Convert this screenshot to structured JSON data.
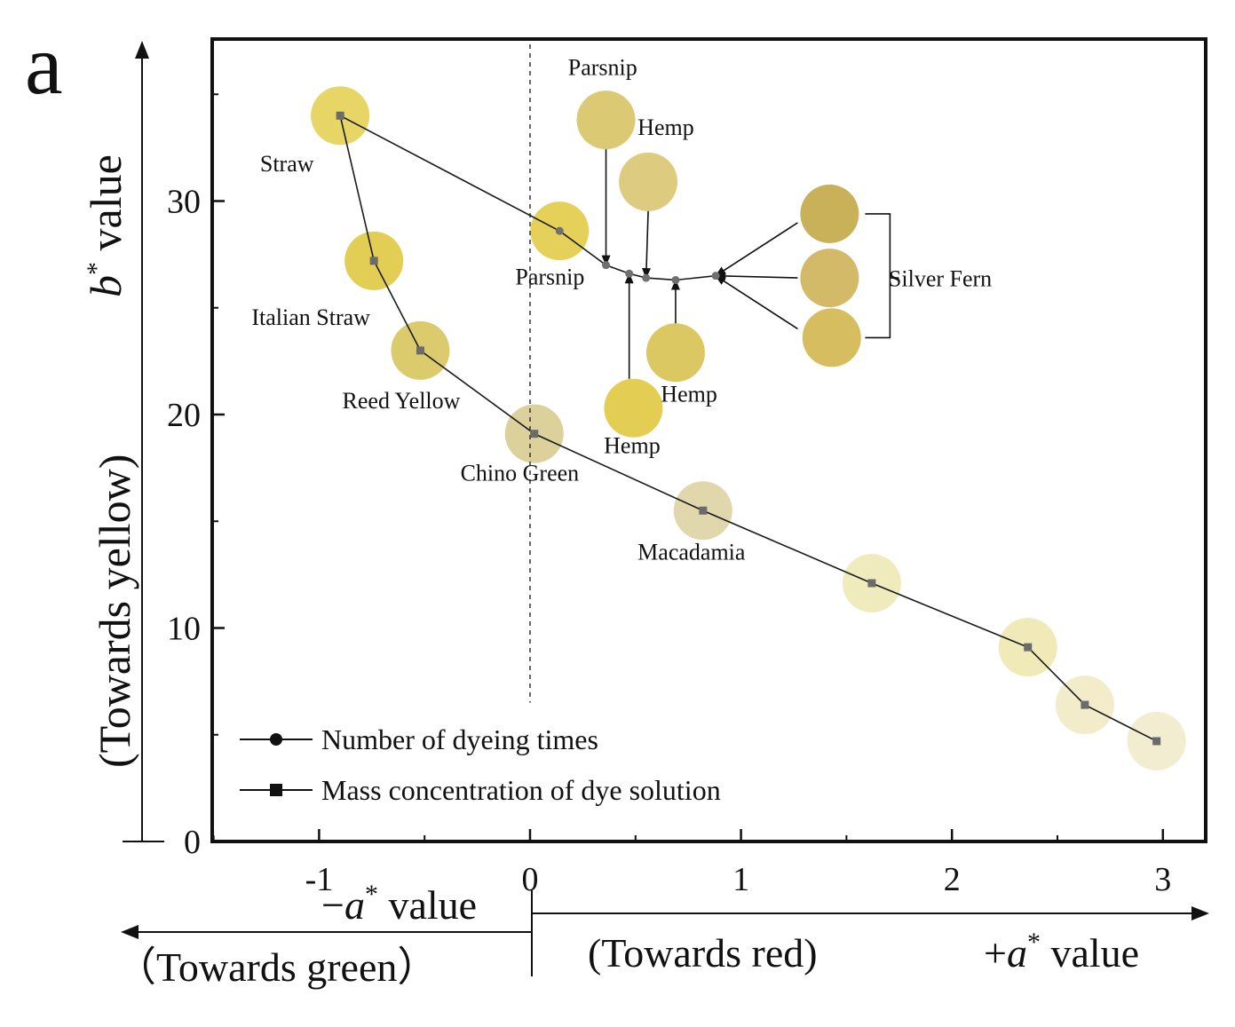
{
  "chart_data": {
    "type": "scatter",
    "panel_label": "a",
    "title": "",
    "xlabel": "a* value",
    "ylabel": "b* value (Towards yellow)",
    "x_axis": {
      "ticks": [
        -1,
        0,
        1,
        2,
        3
      ],
      "tick_labels": [
        "-1",
        "0",
        "1",
        "2",
        "3"
      ],
      "range": [
        -1.5,
        3.2
      ]
    },
    "y_axis": {
      "ticks": [
        0,
        10,
        20,
        30
      ],
      "tick_labels": [
        "0",
        "10",
        "20",
        "30"
      ],
      "range": [
        0,
        37
      ]
    },
    "axis_text": {
      "ylabel_main": "value",
      "ylabel_var": "b",
      "ylabel_sup": "*",
      "ylabel_sub": "(Towards yellow)",
      "neg_a_prefix": "−",
      "neg_a_var": "a",
      "neg_a_sup": "*",
      "neg_a_value": " value",
      "pos_a_prefix": "+",
      "pos_a_var": "a",
      "pos_a_sup": "*",
      "pos_a_value": " value",
      "towards_green": "（Towards green）",
      "towards_red": "(Towards red)"
    },
    "series": [
      {
        "name": "Number of dyeing times",
        "marker": "circle",
        "points": [
          {
            "x": -0.9,
            "y": 34.0
          },
          {
            "x": 0.14,
            "y": 28.6
          },
          {
            "x": 0.36,
            "y": 27.0
          },
          {
            "x": 0.47,
            "y": 26.6
          },
          {
            "x": 0.55,
            "y": 26.4
          },
          {
            "x": 0.69,
            "y": 26.3
          },
          {
            "x": 0.88,
            "y": 26.5
          }
        ]
      },
      {
        "name": "Mass concentration of dye solution",
        "marker": "square",
        "points": [
          {
            "x": -0.9,
            "y": 34.0
          },
          {
            "x": -0.74,
            "y": 27.2
          },
          {
            "x": -0.52,
            "y": 23.0
          },
          {
            "x": 0.02,
            "y": 19.1
          },
          {
            "x": 0.82,
            "y": 15.5
          },
          {
            "x": 1.62,
            "y": 12.1
          },
          {
            "x": 2.36,
            "y": 9.1
          },
          {
            "x": 2.63,
            "y": 6.4
          },
          {
            "x": 2.97,
            "y": 4.7
          }
        ]
      }
    ],
    "swatches": [
      {
        "x": -0.9,
        "y": 34.0,
        "color": "#e7d565"
      },
      {
        "x": -0.74,
        "y": 27.2,
        "color": "#e3ce55"
      },
      {
        "x": -0.52,
        "y": 23.0,
        "color": "#dccb6d"
      },
      {
        "x": 0.02,
        "y": 19.1,
        "color": "#dcd19b"
      },
      {
        "x": 0.82,
        "y": 15.5,
        "color": "#e0d7ac"
      },
      {
        "x": 1.62,
        "y": 12.1,
        "color": "#f0ebbd"
      },
      {
        "x": 2.36,
        "y": 9.1,
        "color": "#f0e9b8"
      },
      {
        "x": 2.63,
        "y": 6.4,
        "color": "#f3eccb"
      },
      {
        "x": 2.97,
        "y": 4.7,
        "color": "#f2edd1"
      },
      {
        "x": 0.14,
        "y": 28.6,
        "color": "#e5d15a"
      },
      {
        "x": 0.36,
        "y": 33.8,
        "color": "#dcc973"
      },
      {
        "x": 0.56,
        "y": 30.9,
        "color": "#ddcc80"
      },
      {
        "x": 0.49,
        "y": 20.3,
        "color": "#e3cd52"
      },
      {
        "x": 0.69,
        "y": 22.9,
        "color": "#dcc862"
      },
      {
        "x": 1.42,
        "y": 29.4,
        "color": "#c9b15a"
      },
      {
        "x": 1.42,
        "y": 26.4,
        "color": "#d2ba68"
      },
      {
        "x": 1.43,
        "y": 23.6,
        "color": "#d6bd60"
      }
    ],
    "annotations": [
      {
        "text": "Straw",
        "x": -1.28,
        "y": 31.4
      },
      {
        "text": "Italian Straw",
        "x": -1.32,
        "y": 24.2
      },
      {
        "text": "Reed Yellow",
        "x": -0.89,
        "y": 20.3
      },
      {
        "text": "Chino Green",
        "x": -0.33,
        "y": 16.9
      },
      {
        "text": "Macadamia",
        "x": 0.51,
        "y": 13.2
      },
      {
        "text": "Parsnip",
        "x": -0.07,
        "y": 26.1
      },
      {
        "text": "Parsnip",
        "x": 0.18,
        "y": 35.9
      },
      {
        "text": "Hemp",
        "x": 0.51,
        "y": 33.1
      },
      {
        "text": "Hemp",
        "x": 0.62,
        "y": 20.6
      },
      {
        "text": "Hemp",
        "x": 0.35,
        "y": 18.2
      },
      {
        "text": "Silver Fern",
        "x": 1.7,
        "y": 26.0
      }
    ]
  }
}
